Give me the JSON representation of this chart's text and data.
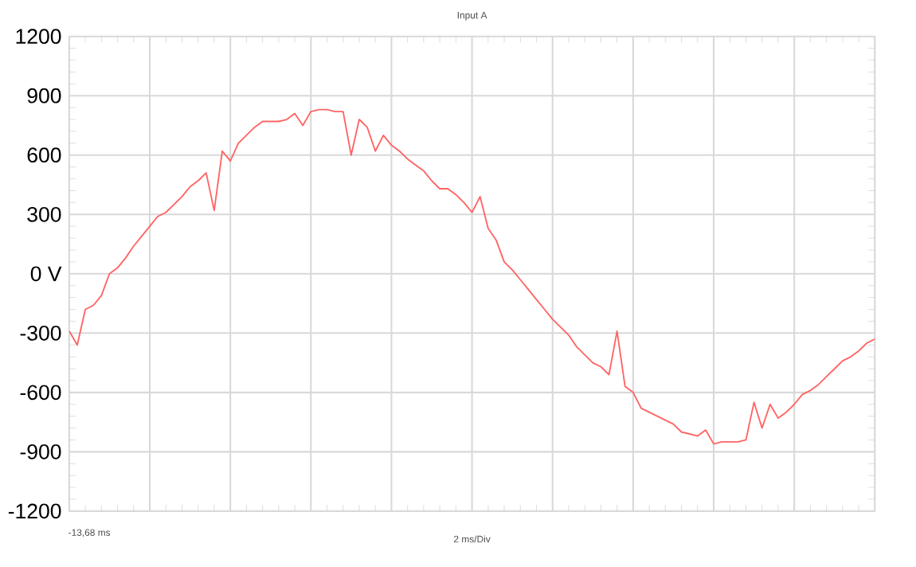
{
  "chart_data": {
    "type": "line",
    "title": "Input A",
    "xlabel": "2 ms/Div",
    "annotations": [
      "-13,68 ms"
    ],
    "categories": [
      null,
      null,
      null,
      null,
      null,
      null,
      null,
      null,
      null,
      null,
      null,
      null,
      null,
      null,
      null,
      null,
      null,
      null,
      null,
      null,
      null,
      null,
      null,
      null,
      null,
      null,
      null,
      null,
      null,
      null,
      null,
      null,
      null,
      null,
      null,
      null,
      null,
      null,
      null,
      null,
      null,
      null,
      null,
      null,
      null,
      null,
      null,
      null,
      null,
      null,
      null,
      null,
      null,
      null,
      null,
      null,
      null,
      null,
      null,
      null,
      null,
      null,
      null,
      null,
      null,
      null,
      null,
      null,
      null,
      null,
      null,
      null,
      null,
      null,
      null,
      null,
      null,
      null,
      null,
      null,
      null,
      null,
      null,
      null,
      null,
      null,
      null,
      null,
      null,
      null,
      null,
      null,
      null,
      null,
      null,
      null,
      null,
      null,
      null,
      null,
      null
    ],
    "ylim": [
      -1200,
      1200
    ],
    "yticks": [
      {
        "value": -1200,
        "label": "-1200"
      },
      {
        "value": -900,
        "label": "-900"
      },
      {
        "value": -600,
        "label": "-600"
      },
      {
        "value": -300,
        "label": "-300"
      },
      {
        "value": 0,
        "label": "0 V"
      },
      {
        "value": 300,
        "label": "300"
      },
      {
        "value": 600,
        "label": "600"
      },
      {
        "value": 900,
        "label": "900"
      },
      {
        "value": 1200,
        "label": "1200"
      }
    ],
    "grid": true,
    "legend": false,
    "marker": "none",
    "line_style": "solid",
    "series": [
      {
        "color": "#ff6464",
        "values": [
          -290,
          -360,
          -180,
          -160,
          -110,
          0,
          30,
          80,
          140,
          190,
          240,
          290,
          310,
          350,
          390,
          440,
          470,
          510,
          320,
          620,
          570,
          660,
          700,
          740,
          770,
          770,
          770,
          780,
          810,
          750,
          820,
          830,
          830,
          820,
          820,
          600,
          780,
          740,
          620,
          700,
          650,
          620,
          580,
          550,
          520,
          470,
          430,
          430,
          400,
          360,
          310,
          390,
          230,
          170,
          60,
          20,
          -30,
          -80,
          -130,
          -180,
          -230,
          -270,
          -310,
          -370,
          -410,
          -450,
          -470,
          -510,
          -290,
          -570,
          -600,
          -680,
          -700,
          -720,
          -740,
          -760,
          -800,
          -810,
          -820,
          -790,
          -860,
          -850,
          -850,
          -850,
          -840,
          -650,
          -780,
          -660,
          -730,
          -700,
          -660,
          -610,
          -590,
          -560,
          -520,
          -480,
          -440,
          -420,
          -390,
          -350,
          -330
        ]
      }
    ]
  }
}
